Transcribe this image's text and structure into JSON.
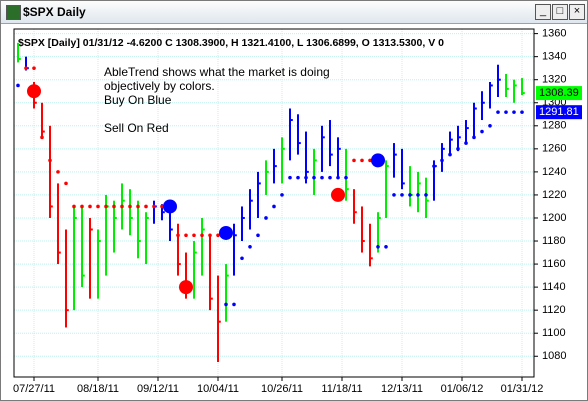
{
  "window": {
    "title": "$SPX Daily"
  },
  "chart_data": {
    "type": "ohlc",
    "header": "$SPX [Daily] 01/31/12  -4.6200 C 1308.3900, H 1321.4100, L 1306.6899, O 1313.5300, V 0",
    "annotation": [
      "AbleTrend shows what the market is doing",
      "objectively by colors.",
      "Buy On Blue",
      "",
      "Sell On Red"
    ],
    "xlim": [
      -0.5,
      64.5
    ],
    "xticks": [
      {
        "value": 2,
        "label": "07/27/11"
      },
      {
        "value": 10,
        "label": "08/18/11"
      },
      {
        "value": 17.5,
        "label": "09/12/11"
      },
      {
        "value": 25,
        "label": "10/04/11"
      },
      {
        "value": 33,
        "label": "10/26/11"
      },
      {
        "value": 40.5,
        "label": "11/18/11"
      },
      {
        "value": 48,
        "label": "12/13/11"
      },
      {
        "value": 55.5,
        "label": "01/06/12"
      },
      {
        "value": 63,
        "label": "01/31/12"
      }
    ],
    "ylim": [
      1062,
      1364
    ],
    "yticks": [
      1080,
      1100,
      1120,
      1140,
      1160,
      1180,
      1200,
      1220,
      1240,
      1260,
      1280,
      1300,
      1320,
      1340,
      1360
    ],
    "grid": true,
    "high": [
      1352,
      1340,
      1318,
      1300,
      1280,
      1230,
      1190,
      1210,
      1210,
      1200,
      1190,
      1220,
      1215,
      1230,
      1225,
      1215,
      1205,
      1215,
      1212,
      1210,
      1195,
      1170,
      1180,
      1200,
      1185,
      1150,
      1160,
      1195,
      1210,
      1225,
      1240,
      1250,
      1260,
      1270,
      1295,
      1290,
      1275,
      1260,
      1280,
      1285,
      1270,
      1260,
      1225,
      1210,
      1195,
      1205,
      1250,
      1265,
      1260,
      1245,
      1240,
      1235,
      1250,
      1265,
      1275,
      1280,
      1285,
      1300,
      1310,
      1318,
      1333,
      1325,
      1320,
      1321.41
    ],
    "low": [
      1335,
      1328,
      1295,
      1270,
      1200,
      1160,
      1105,
      1120,
      1140,
      1130,
      1130,
      1150,
      1170,
      1190,
      1185,
      1165,
      1160,
      1195,
      1198,
      1180,
      1150,
      1130,
      1130,
      1150,
      1120,
      1075,
      1110,
      1150,
      1180,
      1190,
      1200,
      1220,
      1230,
      1230,
      1250,
      1255,
      1230,
      1220,
      1240,
      1245,
      1235,
      1215,
      1195,
      1170,
      1158,
      1170,
      1200,
      1235,
      1225,
      1210,
      1205,
      1200,
      1215,
      1240,
      1255,
      1258,
      1265,
      1270,
      1285,
      1295,
      1305,
      1305,
      1300,
      1306.69
    ],
    "close": [
      1338,
      1330,
      1300,
      1275,
      1210,
      1170,
      1120,
      1200,
      1150,
      1190,
      1180,
      1210,
      1200,
      1215,
      1200,
      1180,
      1200,
      1210,
      1205,
      1190,
      1160,
      1140,
      1170,
      1190,
      1130,
      1110,
      1150,
      1185,
      1200,
      1215,
      1230,
      1240,
      1245,
      1260,
      1285,
      1265,
      1240,
      1250,
      1270,
      1255,
      1260,
      1225,
      1205,
      1180,
      1165,
      1200,
      1245,
      1255,
      1230,
      1220,
      1230,
      1215,
      1245,
      1260,
      1268,
      1270,
      1278,
      1295,
      1300,
      1315,
      1320,
      1312,
      1315,
      1308.39
    ],
    "bar_colors": [
      "#00ee00",
      "#0000ff",
      "#ff0000",
      "#ff0000",
      "#ff0000",
      "#ff0000",
      "#ff0000",
      "#00ee00",
      "#00ee00",
      "#ff0000",
      "#00ee00",
      "#00ee00",
      "#00ee00",
      "#00ee00",
      "#00ee00",
      "#00ee00",
      "#00ee00",
      "#0000ff",
      "#0000ff",
      "#0000ff",
      "#ff0000",
      "#ff0000",
      "#00ee00",
      "#00ee00",
      "#ff0000",
      "#ff0000",
      "#00ee00",
      "#0000ff",
      "#0000ff",
      "#0000ff",
      "#0000ff",
      "#00ee00",
      "#0000ff",
      "#00ee00",
      "#0000ff",
      "#0000ff",
      "#0000ff",
      "#00ee00",
      "#0000ff",
      "#0000ff",
      "#0000ff",
      "#00ee00",
      "#ff0000",
      "#ff0000",
      "#ff0000",
      "#00ee00",
      "#00ee00",
      "#0000ff",
      "#0000ff",
      "#00ee00",
      "#00ee00",
      "#00ee00",
      "#0000ff",
      "#0000ff",
      "#0000ff",
      "#0000ff",
      "#0000ff",
      "#0000ff",
      "#0000ff",
      "#0000ff",
      "#0000ff",
      "#00ee00",
      "#00ee00",
      "#00ee00"
    ],
    "series": [
      {
        "color": "#ff0000",
        "values": [
          null,
          1330,
          1330,
          1270,
          1250,
          1240,
          1230,
          1210,
          1210,
          1210,
          1210,
          1210,
          1210,
          1210,
          1210,
          1210,
          1210,
          1210,
          1210,
          1210,
          1185,
          1185,
          1185,
          1185,
          1185,
          1185,
          null,
          null,
          null,
          null,
          null,
          null,
          null,
          null,
          null,
          null,
          null,
          null,
          null,
          null,
          null,
          null,
          1250,
          1250,
          1250,
          null,
          null,
          null,
          null,
          null,
          null,
          null,
          null,
          null,
          null,
          null,
          null,
          null,
          null,
          null,
          null,
          null,
          null,
          null
        ]
      },
      {
        "color": "#0000ff",
        "values": [
          1315,
          null,
          null,
          null,
          null,
          null,
          null,
          null,
          null,
          null,
          null,
          null,
          null,
          null,
          null,
          null,
          null,
          null,
          null,
          null,
          null,
          null,
          null,
          null,
          null,
          null,
          1125,
          1125,
          1165,
          1175,
          1185,
          1200,
          1210,
          1220,
          1235,
          1235,
          1235,
          1235,
          1235,
          1235,
          1235,
          1235,
          null,
          null,
          null,
          1175,
          1175,
          1220,
          1220,
          1220,
          1220,
          1220,
          1245,
          1250,
          1255,
          1260,
          1265,
          1270,
          1275,
          1280,
          1291.81,
          1291.81,
          1291.81,
          1291.81
        ]
      }
    ],
    "signals": [
      {
        "x": 2,
        "value": 1310,
        "color": "#ff0000"
      },
      {
        "x": 19,
        "value": 1210,
        "color": "#0000ff"
      },
      {
        "x": 21,
        "value": 1140,
        "color": "#ff0000"
      },
      {
        "x": 26,
        "value": 1187,
        "color": "#0000ff"
      },
      {
        "x": 40,
        "value": 1220,
        "color": "#ff0000"
      },
      {
        "x": 45,
        "value": 1250,
        "color": "#0000ff"
      }
    ],
    "price_tags": [
      {
        "value": 1308.39,
        "color": "#00ff00"
      },
      {
        "value": 1291.81,
        "color": "#0000ff",
        "text_color": "#ffffff"
      }
    ]
  }
}
